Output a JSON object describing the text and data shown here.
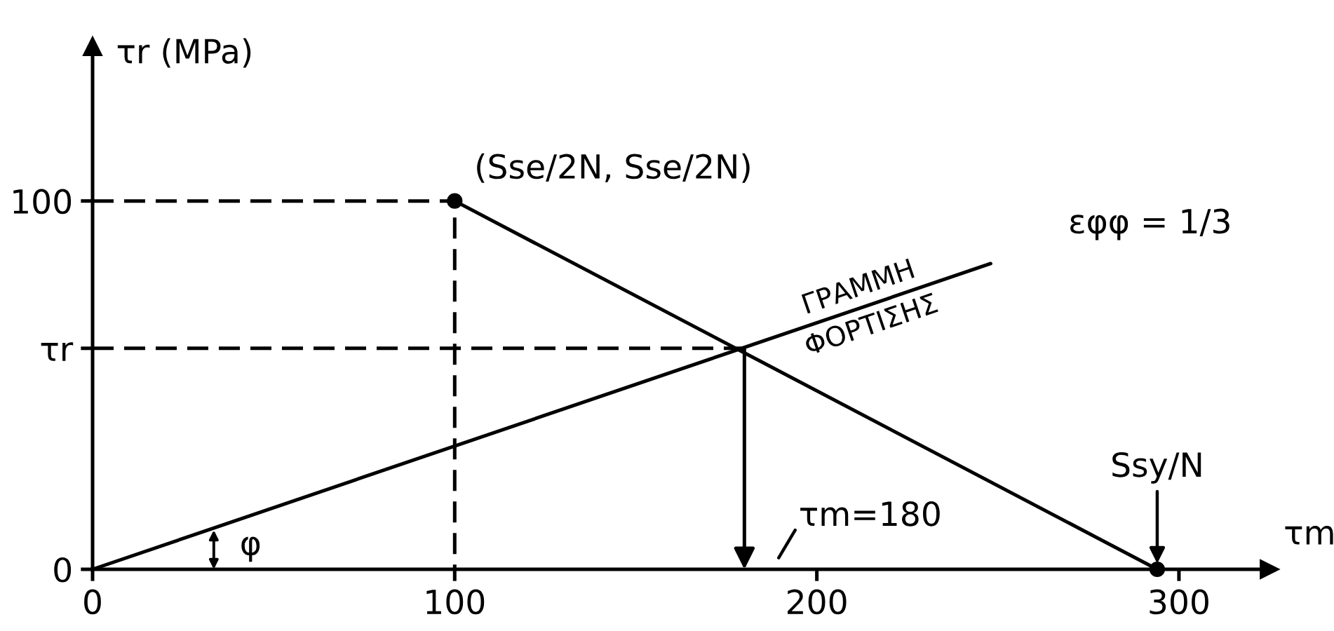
{
  "chart_data": {
    "type": "line",
    "xlabel": "τm",
    "ylabel": "τr (MPa)",
    "xlim": [
      0,
      325
    ],
    "ylim": [
      0,
      142
    ],
    "xticks": [
      0,
      100,
      200,
      300
    ],
    "yticks": [
      0,
      {
        "value": 60,
        "label": "τr"
      },
      100
    ],
    "series": [
      {
        "x": [
          100,
          294
        ],
        "values": [
          100,
          0
        ],
        "color": "#000000",
        "marker": "circle"
      },
      {
        "name": "ΓΡΑΜΜΗ ΦΟΡΤΙΣΗΣ",
        "x": [
          0,
          248
        ],
        "values": [
          0,
          83
        ],
        "color": "#000000"
      },
      {
        "x": [
          0,
          100,
          100
        ],
        "values": [
          100,
          100,
          0
        ],
        "color": "#000000",
        "line_style": "dashed"
      },
      {
        "x": [
          0,
          180
        ],
        "values": [
          60,
          60
        ],
        "color": "#000000",
        "line_style": "dashed"
      }
    ],
    "annotations": [
      {
        "text": "(Sse/2N, Sse/2N)",
        "x": 100,
        "y": 100
      },
      "εφφ = 1/3",
      "τm=180",
      {
        "text": "Ssy/N",
        "x": 294,
        "y": 0
      },
      "φ"
    ]
  }
}
